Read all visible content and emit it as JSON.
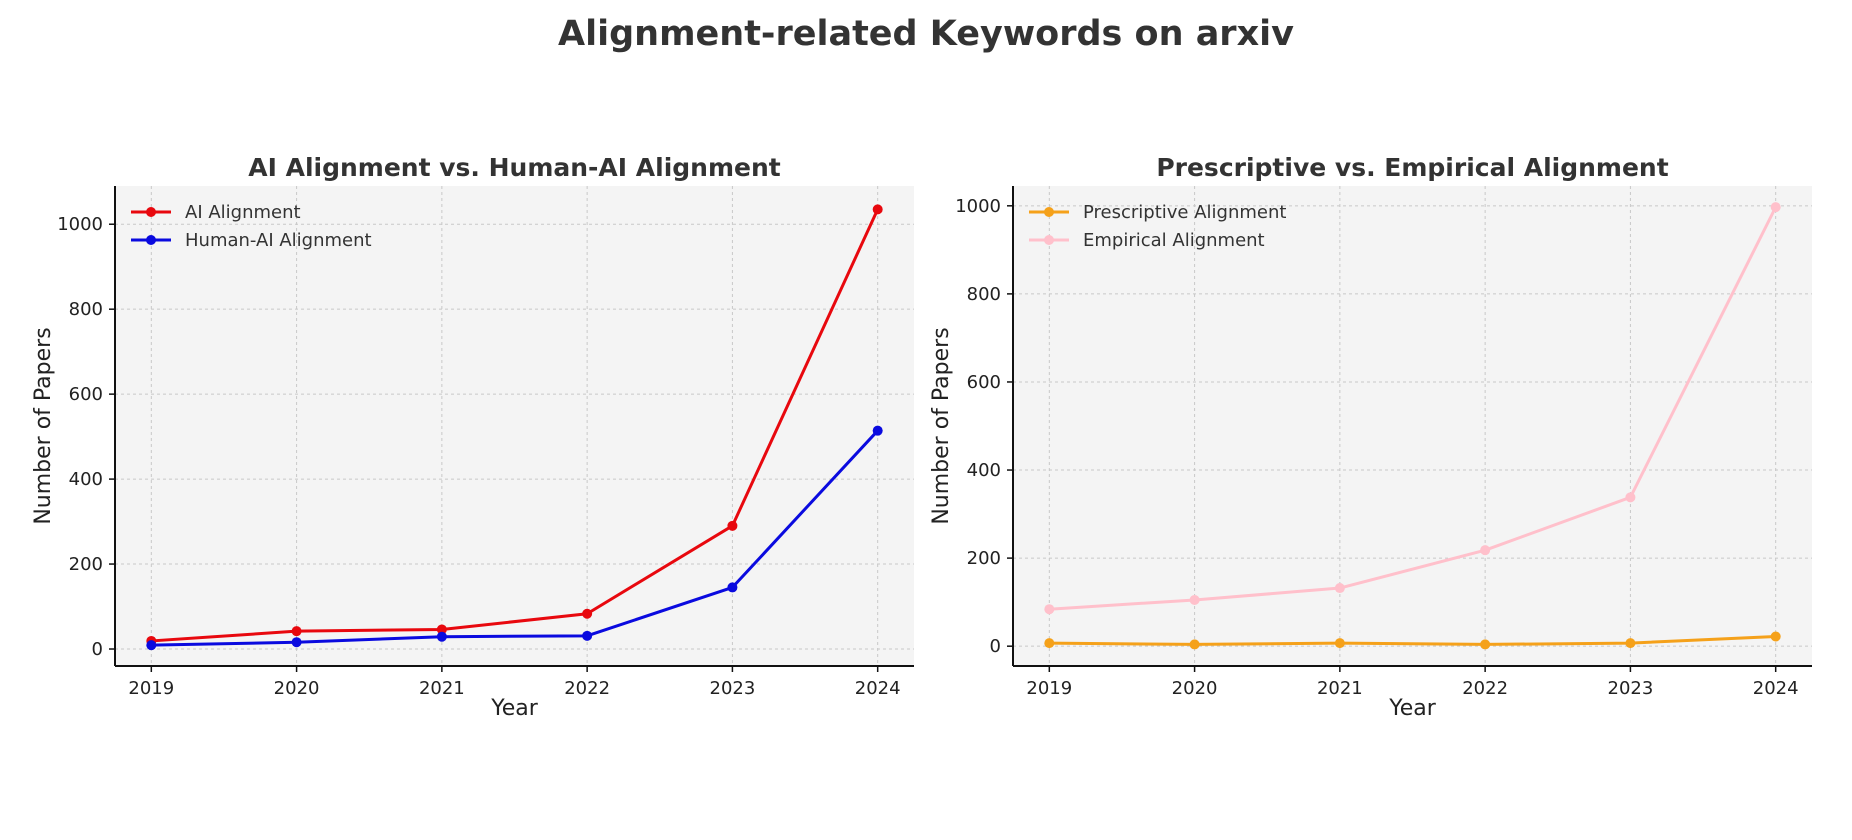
{
  "suptitle": "Alignment-related Keywords on arxiv",
  "chart_data": [
    {
      "type": "line",
      "title": "AI Alignment vs. Human-AI Alignment",
      "xlabel": "Year",
      "ylabel": "Number of Papers",
      "x": [
        "2019",
        "2020",
        "2021",
        "2022",
        "2023",
        "2024"
      ],
      "xlim": [
        2018.75,
        2024.25
      ],
      "ylim": [
        -40,
        1090
      ],
      "yticks": [
        0,
        200,
        400,
        600,
        800,
        1000
      ],
      "grid": true,
      "legend": "top-left",
      "series": [
        {
          "name": "AI Alignment",
          "color": "#e8080e",
          "values": [
            19,
            42,
            46,
            83,
            290,
            1035
          ]
        },
        {
          "name": "Human-AI Alignment",
          "color": "#0a0adf",
          "values": [
            9,
            16,
            29,
            31,
            145,
            514
          ]
        }
      ]
    },
    {
      "type": "line",
      "title": "Prescriptive vs. Empirical Alignment",
      "xlabel": "Year",
      "ylabel": "Number of Papers",
      "x": [
        "2019",
        "2020",
        "2021",
        "2022",
        "2023",
        "2024"
      ],
      "xlim": [
        2018.75,
        2024.25
      ],
      "ylim": [
        -45,
        1045
      ],
      "yticks": [
        0,
        200,
        400,
        600,
        800,
        1000
      ],
      "grid": true,
      "legend": "top-left",
      "series": [
        {
          "name": "Prescriptive Alignment",
          "color": "#f5a11a",
          "values": [
            7,
            4,
            7,
            4,
            7,
            22
          ]
        },
        {
          "name": "Empirical Alignment",
          "color": "#ffc0cb",
          "values": [
            84,
            105,
            132,
            218,
            338,
            997
          ]
        }
      ]
    }
  ]
}
